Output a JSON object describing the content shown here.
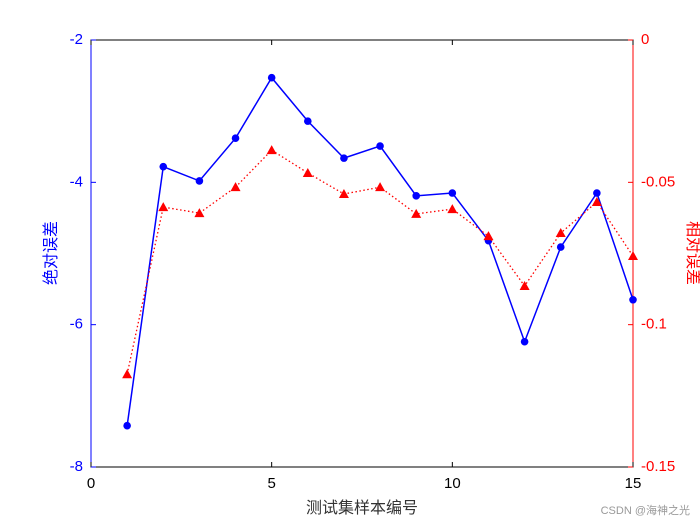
{
  "chart_data": {
    "type": "line",
    "x": [
      1,
      2,
      3,
      4,
      5,
      6,
      7,
      8,
      9,
      10,
      11,
      12,
      13,
      14,
      15
    ],
    "xlabel": "测试集样本编号",
    "ylabel": "绝对误差",
    "y2label": "相对误差",
    "xlim": [
      0,
      15
    ],
    "xticks": [
      0,
      5,
      10,
      15
    ],
    "ylim": [
      -8,
      -2
    ],
    "yticks": [
      -8,
      -6,
      -4,
      -2
    ],
    "y2lim": [
      -0.15,
      0
    ],
    "y2ticks": [
      -0.15,
      -0.1,
      -0.05,
      0
    ],
    "series": [
      {
        "name": "绝对误差",
        "color": "#0000ff",
        "marker": "circle",
        "linestyle": "solid",
        "values": [
          -7.42,
          -3.78,
          -3.98,
          -3.38,
          -2.53,
          -3.14,
          -3.66,
          -3.49,
          -4.19,
          -4.15,
          -4.82,
          -6.24,
          -4.91,
          -4.15,
          -5.65
        ]
      },
      {
        "name": "相对误差",
        "color": "#ff0000",
        "marker": "triangle",
        "linestyle": "dotted",
        "axis": "y2",
        "values": [
          -0.1174,
          -0.0587,
          -0.0608,
          -0.0517,
          -0.0387,
          -0.0467,
          -0.0541,
          -0.0517,
          -0.0611,
          -0.0594,
          -0.0689,
          -0.0864,
          -0.0678,
          -0.0569,
          -0.0759
        ]
      }
    ],
    "watermark": "CSDN @海神之光"
  }
}
